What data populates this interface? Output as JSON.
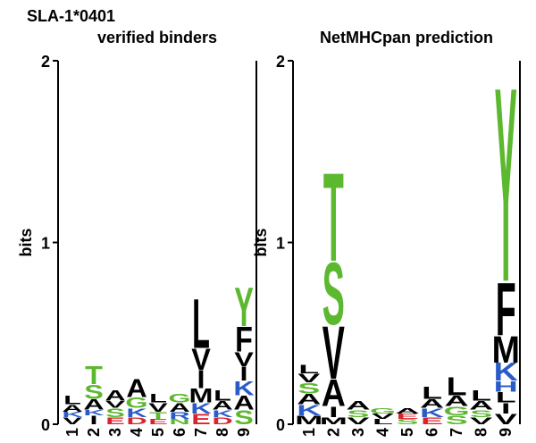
{
  "title": "SLA-1*0401",
  "chart_data": [
    {
      "type": "logo",
      "title": "verified binders",
      "y_label": "bits",
      "categories": [
        "1",
        "2",
        "3",
        "4",
        "5",
        "6",
        "7",
        "8",
        "9"
      ],
      "ylim": [
        0,
        2
      ],
      "yticks": [
        0,
        1,
        2
      ],
      "stacks": [
        [
          {
            "letter": "V",
            "bits": 0.04,
            "color": "#000000"
          },
          {
            "letter": "K",
            "bits": 0.03,
            "color": "#2a5cc8"
          },
          {
            "letter": "A",
            "bits": 0.04,
            "color": "#000000"
          },
          {
            "letter": "L",
            "bits": 0.05,
            "color": "#000000"
          }
        ],
        [
          {
            "letter": "I",
            "bits": 0.05,
            "color": "#000000"
          },
          {
            "letter": "K",
            "bits": 0.03,
            "color": "#2a5cc8"
          },
          {
            "letter": "A",
            "bits": 0.06,
            "color": "#000000"
          },
          {
            "letter": "S",
            "bits": 0.08,
            "color": "#5cb82e"
          },
          {
            "letter": "T",
            "bits": 0.1,
            "color": "#5cb82e"
          }
        ],
        [
          {
            "letter": "E",
            "bits": 0.04,
            "color": "#d9232e"
          },
          {
            "letter": "S",
            "bits": 0.05,
            "color": "#5cb82e"
          },
          {
            "letter": "V",
            "bits": 0.04,
            "color": "#000000"
          },
          {
            "letter": "A",
            "bits": 0.06,
            "color": "#000000"
          }
        ],
        [
          {
            "letter": "D",
            "bits": 0.04,
            "color": "#d9232e"
          },
          {
            "letter": "K",
            "bits": 0.05,
            "color": "#2a5cc8"
          },
          {
            "letter": "G",
            "bits": 0.06,
            "color": "#5cb82e"
          },
          {
            "letter": "A",
            "bits": 0.1,
            "color": "#000000"
          }
        ],
        [
          {
            "letter": "E",
            "bits": 0.03,
            "color": "#d9232e"
          },
          {
            "letter": "T",
            "bits": 0.04,
            "color": "#5cb82e"
          },
          {
            "letter": "V",
            "bits": 0.05,
            "color": "#000000"
          },
          {
            "letter": "L",
            "bits": 0.05,
            "color": "#000000"
          }
        ],
        [
          {
            "letter": "N",
            "bits": 0.03,
            "color": "#5cb82e"
          },
          {
            "letter": "R",
            "bits": 0.04,
            "color": "#2a5cc8"
          },
          {
            "letter": "A",
            "bits": 0.05,
            "color": "#000000"
          },
          {
            "letter": "G",
            "bits": 0.05,
            "color": "#5cb82e"
          }
        ],
        [
          {
            "letter": "E",
            "bits": 0.06,
            "color": "#d9232e"
          },
          {
            "letter": "K",
            "bits": 0.06,
            "color": "#2a5cc8"
          },
          {
            "letter": "M",
            "bits": 0.08,
            "color": "#000000"
          },
          {
            "letter": "I",
            "bits": 0.1,
            "color": "#000000"
          },
          {
            "letter": "V",
            "bits": 0.12,
            "color": "#000000"
          },
          {
            "letter": "L",
            "bits": 0.28,
            "color": "#000000"
          }
        ],
        [
          {
            "letter": "D",
            "bits": 0.04,
            "color": "#d9232e"
          },
          {
            "letter": "K",
            "bits": 0.04,
            "color": "#2a5cc8"
          },
          {
            "letter": "A",
            "bits": 0.05,
            "color": "#000000"
          },
          {
            "letter": "L",
            "bits": 0.06,
            "color": "#000000"
          }
        ],
        [
          {
            "letter": "S",
            "bits": 0.08,
            "color": "#5cb82e"
          },
          {
            "letter": "A",
            "bits": 0.08,
            "color": "#000000"
          },
          {
            "letter": "K",
            "bits": 0.08,
            "color": "#2a5cc8"
          },
          {
            "letter": "I",
            "bits": 0.08,
            "color": "#000000"
          },
          {
            "letter": "V",
            "bits": 0.08,
            "color": "#000000"
          },
          {
            "letter": "F",
            "bits": 0.14,
            "color": "#000000"
          },
          {
            "letter": "Y",
            "bits": 0.22,
            "color": "#5cb82e"
          }
        ]
      ]
    },
    {
      "type": "logo",
      "title": "NetMHCpan prediction",
      "y_label": "bits",
      "categories": [
        "1",
        "2",
        "3",
        "4",
        "5",
        "6",
        "7",
        "8",
        "9"
      ],
      "ylim": [
        0,
        2
      ],
      "yticks": [
        0,
        1,
        2
      ],
      "stacks": [
        [
          {
            "letter": "M",
            "bits": 0.05,
            "color": "#000000"
          },
          {
            "letter": "K",
            "bits": 0.06,
            "color": "#2a5cc8"
          },
          {
            "letter": "A",
            "bits": 0.06,
            "color": "#000000"
          },
          {
            "letter": "S",
            "bits": 0.06,
            "color": "#5cb82e"
          },
          {
            "letter": "V",
            "bits": 0.05,
            "color": "#000000"
          },
          {
            "letter": "L",
            "bits": 0.05,
            "color": "#000000"
          }
        ],
        [
          {
            "letter": "M",
            "bits": 0.04,
            "color": "#000000"
          },
          {
            "letter": "I",
            "bits": 0.06,
            "color": "#000000"
          },
          {
            "letter": "A",
            "bits": 0.15,
            "color": "#000000"
          },
          {
            "letter": "V",
            "bits": 0.3,
            "color": "#000000"
          },
          {
            "letter": "S",
            "bits": 0.35,
            "color": "#5cb82e"
          },
          {
            "letter": "T",
            "bits": 0.5,
            "color": "#5cb82e"
          }
        ],
        [
          {
            "letter": "V",
            "bits": 0.04,
            "color": "#000000"
          },
          {
            "letter": "S",
            "bits": 0.04,
            "color": "#5cb82e"
          },
          {
            "letter": "A",
            "bits": 0.05,
            "color": "#000000"
          }
        ],
        [
          {
            "letter": "L",
            "bits": 0.03,
            "color": "#000000"
          },
          {
            "letter": "V",
            "bits": 0.03,
            "color": "#000000"
          },
          {
            "letter": "G",
            "bits": 0.03,
            "color": "#5cb82e"
          }
        ],
        [
          {
            "letter": "S",
            "bits": 0.03,
            "color": "#5cb82e"
          },
          {
            "letter": "E",
            "bits": 0.03,
            "color": "#d9232e"
          },
          {
            "letter": "A",
            "bits": 0.03,
            "color": "#000000"
          }
        ],
        [
          {
            "letter": "E",
            "bits": 0.04,
            "color": "#d9232e"
          },
          {
            "letter": "K",
            "bits": 0.05,
            "color": "#2a5cc8"
          },
          {
            "letter": "A",
            "bits": 0.05,
            "color": "#000000"
          },
          {
            "letter": "L",
            "bits": 0.07,
            "color": "#000000"
          }
        ],
        [
          {
            "letter": "S",
            "bits": 0.05,
            "color": "#5cb82e"
          },
          {
            "letter": "G",
            "bits": 0.05,
            "color": "#5cb82e"
          },
          {
            "letter": "A",
            "bits": 0.06,
            "color": "#000000"
          },
          {
            "letter": "L",
            "bits": 0.1,
            "color": "#000000"
          }
        ],
        [
          {
            "letter": "V",
            "bits": 0.04,
            "color": "#000000"
          },
          {
            "letter": "S",
            "bits": 0.04,
            "color": "#5cb82e"
          },
          {
            "letter": "A",
            "bits": 0.05,
            "color": "#000000"
          },
          {
            "letter": "L",
            "bits": 0.06,
            "color": "#000000"
          }
        ],
        [
          {
            "letter": "V",
            "bits": 0.06,
            "color": "#000000"
          },
          {
            "letter": "I",
            "bits": 0.06,
            "color": "#000000"
          },
          {
            "letter": "L",
            "bits": 0.06,
            "color": "#000000"
          },
          {
            "letter": "H",
            "bits": 0.06,
            "color": "#2a5cc8"
          },
          {
            "letter": "K",
            "bits": 0.1,
            "color": "#2a5cc8"
          },
          {
            "letter": "M",
            "bits": 0.15,
            "color": "#000000"
          },
          {
            "letter": "F",
            "bits": 0.3,
            "color": "#000000"
          },
          {
            "letter": "Y",
            "bits": 1.1,
            "color": "#5cb82e"
          }
        ]
      ]
    }
  ]
}
